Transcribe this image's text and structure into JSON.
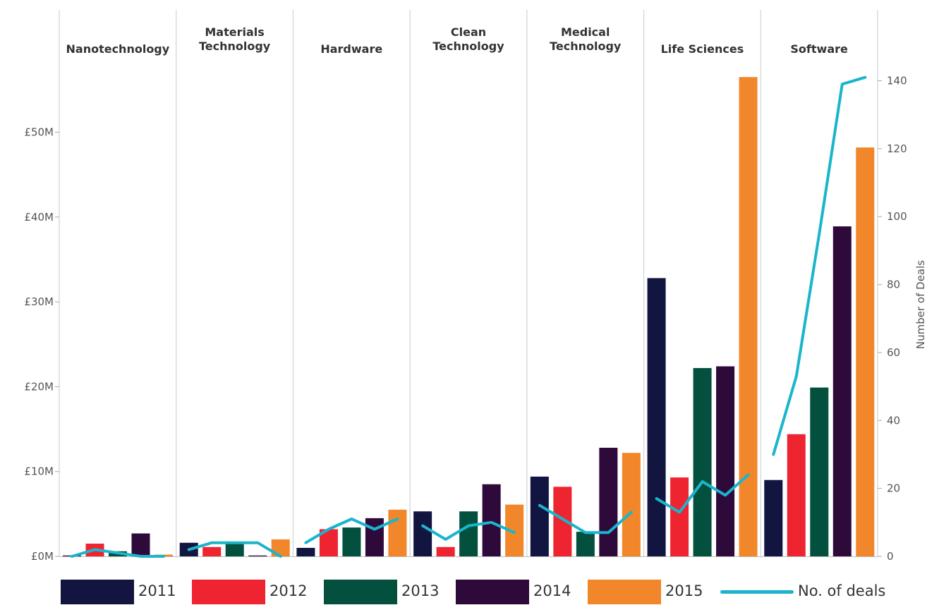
{
  "chart_data": {
    "type": "bar",
    "categories": [
      "Nanotechnology",
      "Materials Technology",
      "Hardware",
      "Clean Technology",
      "Medical Technology",
      "Life Sciences",
      "Software"
    ],
    "category_labels": [
      [
        "Nanotechnology"
      ],
      [
        "Materials",
        "Technology"
      ],
      [
        "Hardware"
      ],
      [
        "Clean",
        "Technology"
      ],
      [
        "Medical",
        "Technology"
      ],
      [
        "Life Sciences"
      ],
      [
        "Software"
      ]
    ],
    "series": [
      {
        "name": "2011",
        "color": "#111540",
        "values": [
          0.1,
          1.6,
          1.0,
          5.3,
          9.4,
          32.8,
          9.0
        ]
      },
      {
        "name": "2012",
        "color": "#ee2430",
        "values": [
          1.5,
          1.1,
          3.2,
          1.1,
          8.2,
          9.3,
          14.4
        ]
      },
      {
        "name": "2013",
        "color": "#03503f",
        "values": [
          0.6,
          1.6,
          3.4,
          5.3,
          2.9,
          22.2,
          19.9
        ]
      },
      {
        "name": "2014",
        "color": "#2e0a3b",
        "values": [
          2.7,
          0.1,
          4.5,
          8.5,
          12.8,
          22.4,
          38.9
        ]
      },
      {
        "name": "2015",
        "color": "#f2862a",
        "values": [
          0.2,
          2.0,
          5.5,
          6.1,
          12.2,
          56.5,
          48.2
        ]
      }
    ],
    "line_series": {
      "name": "No. of deals",
      "color": "#1ab5cc",
      "values": [
        [
          0,
          2,
          1,
          0,
          0
        ],
        [
          2,
          4,
          4,
          4,
          0
        ],
        [
          4,
          8,
          11,
          8,
          11
        ],
        [
          9,
          5,
          9,
          10,
          7
        ],
        [
          15,
          11,
          7,
          7,
          13
        ],
        [
          17,
          13,
          22,
          18,
          24
        ],
        [
          30,
          53,
          95,
          139,
          141
        ]
      ]
    },
    "y_left": {
      "label": "",
      "ylim": [
        0,
        57
      ],
      "ticks": [
        0,
        10,
        20,
        30,
        40,
        50
      ],
      "tick_labels": [
        "£0M",
        "£10M",
        "£20M",
        "£30M",
        "£40M",
        "£50M"
      ]
    },
    "y_right": {
      "label": "Number of Deals",
      "ylim": [
        0,
        147.5
      ],
      "ticks": [
        0,
        20,
        40,
        60,
        80,
        100,
        120,
        140
      ],
      "tick_labels": [
        "0",
        "20",
        "40",
        "60",
        "80",
        "100",
        "120",
        "140"
      ]
    },
    "legend": {
      "placement": "bottom"
    },
    "grid": false
  }
}
